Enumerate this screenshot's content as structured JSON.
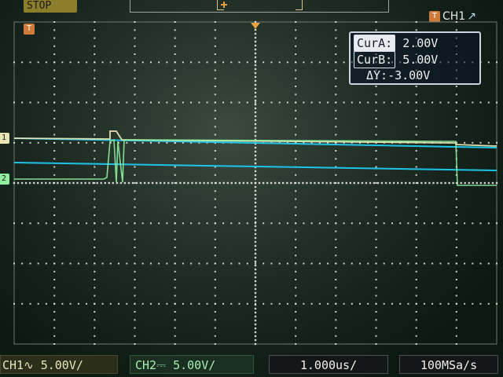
{
  "status": {
    "run_state": "STOP"
  },
  "trigger": {
    "badge": "T",
    "source": "CH1",
    "slope_symbol": "↗"
  },
  "cursors": {
    "a_label": "CurA:",
    "a_value": "2.00V",
    "b_label": "CurB:",
    "b_value": "5.00V",
    "delta_label": "ΔY:",
    "delta_value": "-3.00V"
  },
  "channels": {
    "ch1": {
      "label": "CH1∿",
      "scale": "5.00V/",
      "marker": "1",
      "color": "#e9e6b4"
    },
    "ch2": {
      "label": "CH2⎓",
      "scale": "5.00V/",
      "marker": "2",
      "color": "#8ff0a0"
    }
  },
  "timebase": {
    "scale": "1.000us/"
  },
  "sample_rate": {
    "value": "100MSa/s"
  },
  "trigger_marker": {
    "badge": "T"
  },
  "cursor_line_color": "#1ec4e8",
  "grid_color": "#f2f2ec",
  "icons": [
    "trigger-badge-icon",
    "trigger-slope-icon",
    "ch1-marker-icon",
    "ch2-marker-icon",
    "trigger-position-icon"
  ]
}
